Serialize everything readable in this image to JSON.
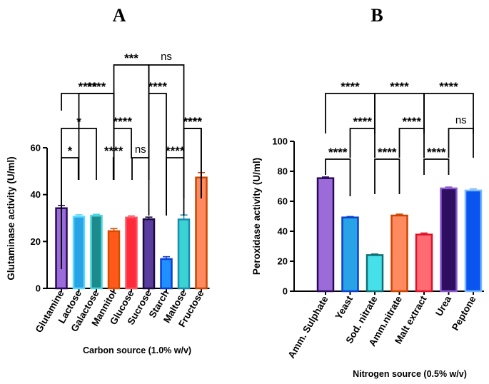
{
  "chart_data": [
    {
      "panel": "A",
      "type": "bar",
      "title": "",
      "xlabel": "Carbon source (1.0% w/v)",
      "ylabel": "Glutaminase activity (U/ml)",
      "ylim": [
        0,
        60
      ],
      "yticks": [
        0,
        20,
        40,
        60
      ],
      "grid": false,
      "categories": [
        "Glutamine",
        "Lactose",
        "Galactose",
        "Mannitol",
        "Glucose",
        "Sucrose",
        "Starch",
        "Maltose",
        "Fructose"
      ],
      "values": [
        34.2,
        30.6,
        31.0,
        24.4,
        30.2,
        29.5,
        12.5,
        29.4,
        47.3
      ],
      "errors": [
        1.2,
        0.8,
        0.6,
        1.1,
        0.7,
        0.9,
        1.0,
        1.9,
        2.1
      ],
      "fill_colors": [
        "#9b6bd9",
        "#27a3e6",
        "#1d8a8c",
        "#ff5a1a",
        "#ff2a3a",
        "#5a3c9e",
        "#1e90ff",
        "#3ad3d3",
        "#ff8a60"
      ],
      "edge_colors": [
        "#2b0a5c",
        "#58d8ff",
        "#46d6e0",
        "#d94a00",
        "#ff5060",
        "#1a0a40",
        "#0b3fd0",
        "#1a8bb0",
        "#cc4400"
      ],
      "comparisons": [
        {
          "from": "Glutamine",
          "to": "Lactose",
          "label": "*"
        },
        {
          "from": "Glutamine",
          "to": "Galactose",
          "label": "*"
        },
        {
          "from": "Glutamine",
          "to": "Mannitol",
          "label": "****"
        },
        {
          "from": "Lactose",
          "to": "Mannitol",
          "label": "****"
        },
        {
          "from": "Galactose",
          "to": "Mannitol",
          "label": "****"
        },
        {
          "from": "Mannitol",
          "to": "Glucose",
          "label": "****"
        },
        {
          "from": "Mannitol",
          "to": "Sucrose",
          "label": "***"
        },
        {
          "from": "Sucrose",
          "to": "Glucose",
          "label": "ns"
        },
        {
          "from": "Sucrose",
          "to": "Starch",
          "label": "****"
        },
        {
          "from": "Sucrose",
          "to": "Maltose",
          "label": "ns"
        },
        {
          "from": "Starch",
          "to": "Maltose",
          "label": "****"
        },
        {
          "from": "Maltose",
          "to": "Fructose",
          "label": "****"
        },
        {
          "from": "Maltose",
          "to": "Fructose",
          "label": "****"
        }
      ]
    },
    {
      "panel": "B",
      "type": "bar",
      "title": "",
      "xlabel": "Nitrogen source (0.5% w/v)",
      "ylabel": "Peroxidase activity (U/ml)",
      "ylim": [
        0,
        100
      ],
      "yticks": [
        0,
        20,
        40,
        60,
        80,
        100
      ],
      "grid": false,
      "categories": [
        "Amm. Sulphate",
        "Yeast",
        "Sod. nitrate",
        "Amm.nitrate",
        "Malt extract",
        "Urea",
        "Peptone"
      ],
      "values": [
        75.4,
        49.2,
        24.1,
        50.5,
        37.8,
        68.6,
        67.2
      ],
      "errors": [
        0.8,
        0.6,
        0.7,
        0.9,
        1.0,
        0.9,
        1.1
      ],
      "fill_colors": [
        "#9b6bd9",
        "#27a3e6",
        "#46e0ea",
        "#ff8a60",
        "#ff6b73",
        "#2e0e60",
        "#0a55f0"
      ],
      "edge_colors": [
        "#2b0a5c",
        "#0b3fd0",
        "#0f6f75",
        "#cc4400",
        "#e0102a",
        "#8a5ad0",
        "#7ab8ff"
      ],
      "comparisons": [
        {
          "from": "Amm. Sulphate",
          "to": "Yeast",
          "label": "****"
        },
        {
          "from": "Amm. Sulphate",
          "to": "Sod. nitrate",
          "label": "****"
        },
        {
          "from": "Yeast",
          "to": "Sod. nitrate",
          "label": "****"
        },
        {
          "from": "Sod. nitrate",
          "to": "Amm.nitrate",
          "label": "****"
        },
        {
          "from": "Sod. nitrate",
          "to": "Malt extract",
          "label": "****"
        },
        {
          "from": "Amm.nitrate",
          "to": "Malt extract",
          "label": "****"
        },
        {
          "from": "Malt extract",
          "to": "Urea",
          "label": "****"
        },
        {
          "from": "Malt extract",
          "to": "Peptone",
          "label": "****"
        },
        {
          "from": "Urea",
          "to": "Peptone",
          "label": "ns"
        }
      ]
    }
  ]
}
